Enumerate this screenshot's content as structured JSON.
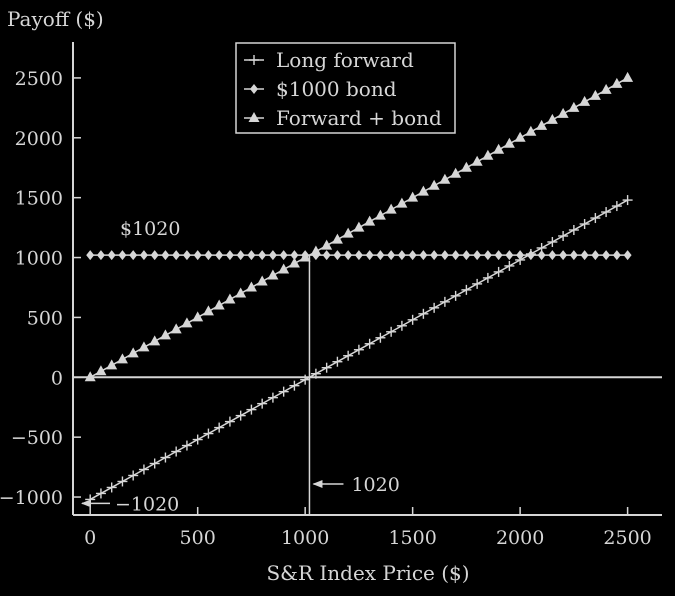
{
  "chart_data": {
    "type": "line",
    "ylabel": "Payoff ($)",
    "xlabel": "S&R Index Price ($)",
    "xlim": [
      -80,
      2660
    ],
    "ylim": [
      -1150,
      2800
    ],
    "xticks": [
      0,
      500,
      1000,
      1500,
      2000,
      2500
    ],
    "yticks": [
      -1000,
      -500,
      0,
      500,
      1000,
      1500,
      2000,
      2500
    ],
    "grid": false,
    "legend_position": "top-center",
    "series": [
      {
        "name": "Long forward",
        "marker": "plus",
        "x": [
          0,
          2500
        ],
        "y": [
          -1020,
          1480
        ]
      },
      {
        "name": "$1000 bond",
        "marker": "diamond",
        "x": [
          0,
          2500
        ],
        "y": [
          1020,
          1020
        ]
      },
      {
        "name": "Forward + bond",
        "marker": "triangle",
        "x": [
          0,
          2500
        ],
        "y": [
          0,
          2500
        ]
      }
    ],
    "marker_step": 50,
    "annotations": [
      {
        "text": "$1020"
      },
      {
        "text": "1020"
      },
      {
        "text": "−1020"
      }
    ],
    "reference_value": 1020
  },
  "colors": {
    "background": "#000000",
    "foreground": "#d6d6d6"
  }
}
